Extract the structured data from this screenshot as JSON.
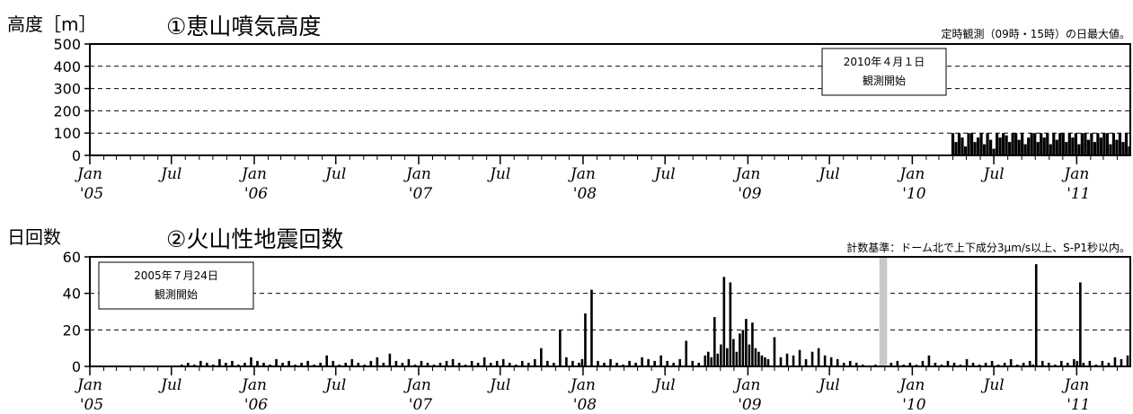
{
  "chart_data": [
    {
      "type": "bar",
      "title": "①恵山噴気高度",
      "ylabel": "高度［m］",
      "note": "定時観測（09時・15時）の日最大値。",
      "ylim": [
        0,
        500
      ],
      "yticks": [
        0,
        100,
        200,
        300,
        400,
        500
      ],
      "grid": "dashed",
      "x_range": [
        "2005-01-01",
        "2011-04-30"
      ],
      "xticks": [
        {
          "date": "2005-01-01",
          "label": "Jan",
          "year": "'05"
        },
        {
          "date": "2005-07-01",
          "label": "Jul",
          "year": ""
        },
        {
          "date": "2006-01-01",
          "label": "Jan",
          "year": "'06"
        },
        {
          "date": "2006-07-01",
          "label": "Jul",
          "year": ""
        },
        {
          "date": "2007-01-01",
          "label": "Jan",
          "year": "'07"
        },
        {
          "date": "2007-07-01",
          "label": "Jul",
          "year": ""
        },
        {
          "date": "2008-01-01",
          "label": "Jan",
          "year": "'08"
        },
        {
          "date": "2008-07-01",
          "label": "Jul",
          "year": ""
        },
        {
          "date": "2009-01-01",
          "label": "Jan",
          "year": "'09"
        },
        {
          "date": "2009-07-01",
          "label": "Jul",
          "year": ""
        },
        {
          "date": "2010-01-01",
          "label": "Jan",
          "year": "'10"
        },
        {
          "date": "2010-07-01",
          "label": "Jul",
          "year": ""
        },
        {
          "date": "2011-01-01",
          "label": "Jan",
          "year": "'11"
        }
      ],
      "annotation": {
        "lines": [
          "2010年４月１日",
          "観測開始"
        ],
        "placement": "top-right"
      },
      "x": [
        "2010-04-01",
        "2010-04-08",
        "2010-04-15",
        "2010-04-22",
        "2010-04-29",
        "2010-05-06",
        "2010-05-13",
        "2010-05-20",
        "2010-05-27",
        "2010-06-03",
        "2010-06-10",
        "2010-06-17",
        "2010-06-24",
        "2010-07-01",
        "2010-07-08",
        "2010-07-15",
        "2010-07-22",
        "2010-07-29",
        "2010-08-05",
        "2010-08-12",
        "2010-08-19",
        "2010-08-26",
        "2010-09-02",
        "2010-09-09",
        "2010-09-16",
        "2010-09-23",
        "2010-09-30",
        "2010-10-07",
        "2010-10-14",
        "2010-10-21",
        "2010-10-28",
        "2010-11-04",
        "2010-11-11",
        "2010-11-18",
        "2010-11-25",
        "2010-12-02",
        "2010-12-09",
        "2010-12-16",
        "2010-12-23",
        "2010-12-30",
        "2011-01-06",
        "2011-01-13",
        "2011-01-20",
        "2011-01-27",
        "2011-02-03",
        "2011-02-10",
        "2011-02-17",
        "2011-02-24",
        "2011-03-03",
        "2011-03-10",
        "2011-03-17",
        "2011-03-24",
        "2011-03-31",
        "2011-04-07",
        "2011-04-14",
        "2011-04-21",
        "2011-04-28"
      ],
      "values": [
        100,
        60,
        100,
        80,
        40,
        100,
        100,
        60,
        80,
        100,
        50,
        100,
        70,
        30,
        100,
        80,
        100,
        90,
        60,
        100,
        100,
        70,
        100,
        50,
        80,
        100,
        100,
        60,
        100,
        80,
        100,
        50,
        100,
        70,
        100,
        100,
        60,
        100,
        80,
        100,
        50,
        100,
        100,
        70,
        100,
        60,
        100,
        80,
        100,
        100,
        50,
        100,
        70,
        100,
        60,
        100,
        40
      ]
    },
    {
      "type": "bar",
      "title": "②火山性地震回数",
      "ylabel": "日回数",
      "note": "計数基準：ドーム北で上下成分3μm/s以上、S-P1秒以内。",
      "ylim": [
        0,
        60
      ],
      "yticks": [
        0,
        20,
        40,
        60
      ],
      "grid": "dashed",
      "x_range": [
        "2005-01-01",
        "2011-04-30"
      ],
      "xticks": [
        {
          "date": "2005-01-01",
          "label": "Jan",
          "year": "'05"
        },
        {
          "date": "2005-07-01",
          "label": "Jul",
          "year": ""
        },
        {
          "date": "2006-01-01",
          "label": "Jan",
          "year": "'06"
        },
        {
          "date": "2006-07-01",
          "label": "Jul",
          "year": ""
        },
        {
          "date": "2007-01-01",
          "label": "Jan",
          "year": "'07"
        },
        {
          "date": "2007-07-01",
          "label": "Jul",
          "year": ""
        },
        {
          "date": "2008-01-01",
          "label": "Jan",
          "year": "'08"
        },
        {
          "date": "2008-07-01",
          "label": "Jul",
          "year": ""
        },
        {
          "date": "2009-01-01",
          "label": "Jan",
          "year": "'09"
        },
        {
          "date": "2009-07-01",
          "label": "Jul",
          "year": ""
        },
        {
          "date": "2010-01-01",
          "label": "Jan",
          "year": "'10"
        },
        {
          "date": "2010-07-01",
          "label": "Jul",
          "year": ""
        },
        {
          "date": "2011-01-01",
          "label": "Jan",
          "year": "'11"
        }
      ],
      "annotation": {
        "lines": [
          "2005年７月24日",
          "観測開始"
        ],
        "placement": "top-left"
      },
      "missing_period": {
        "start": "2009-10-20",
        "end": "2009-11-06",
        "color": "#c8c8c8"
      },
      "x": [
        "2005-07-24",
        "2005-08-07",
        "2005-08-21",
        "2005-09-04",
        "2005-09-18",
        "2005-10-02",
        "2005-10-16",
        "2005-10-30",
        "2005-11-13",
        "2005-11-27",
        "2005-12-11",
        "2005-12-25",
        "2006-01-08",
        "2006-01-22",
        "2006-02-05",
        "2006-02-19",
        "2006-03-05",
        "2006-03-19",
        "2006-04-02",
        "2006-04-16",
        "2006-04-30",
        "2006-05-14",
        "2006-05-28",
        "2006-06-11",
        "2006-06-25",
        "2006-07-09",
        "2006-07-23",
        "2006-08-06",
        "2006-08-20",
        "2006-09-03",
        "2006-09-17",
        "2006-10-01",
        "2006-10-15",
        "2006-10-29",
        "2006-11-12",
        "2006-11-26",
        "2006-12-10",
        "2006-12-24",
        "2007-01-07",
        "2007-01-21",
        "2007-02-04",
        "2007-02-18",
        "2007-03-04",
        "2007-03-18",
        "2007-04-01",
        "2007-04-15",
        "2007-04-29",
        "2007-05-13",
        "2007-05-27",
        "2007-06-10",
        "2007-06-24",
        "2007-07-08",
        "2007-07-22",
        "2007-08-05",
        "2007-08-19",
        "2007-09-02",
        "2007-09-16",
        "2007-09-30",
        "2007-10-14",
        "2007-10-28",
        "2007-11-11",
        "2007-11-25",
        "2007-12-09",
        "2007-12-23",
        "2007-12-30",
        "2008-01-06",
        "2008-01-20",
        "2008-02-03",
        "2008-02-17",
        "2008-03-02",
        "2008-03-16",
        "2008-03-30",
        "2008-04-13",
        "2008-04-27",
        "2008-05-11",
        "2008-05-25",
        "2008-06-08",
        "2008-06-22",
        "2008-07-06",
        "2008-07-20",
        "2008-08-03",
        "2008-08-17",
        "2008-08-31",
        "2008-09-14",
        "2008-09-28",
        "2008-10-05",
        "2008-10-12",
        "2008-10-19",
        "2008-10-26",
        "2008-11-02",
        "2008-11-09",
        "2008-11-16",
        "2008-11-23",
        "2008-11-30",
        "2008-12-07",
        "2008-12-14",
        "2008-12-21",
        "2008-12-28",
        "2009-01-04",
        "2009-01-11",
        "2009-01-18",
        "2009-01-25",
        "2009-02-01",
        "2009-02-08",
        "2009-02-15",
        "2009-03-01",
        "2009-03-15",
        "2009-03-29",
        "2009-04-12",
        "2009-04-26",
        "2009-05-10",
        "2009-05-24",
        "2009-06-07",
        "2009-06-21",
        "2009-07-05",
        "2009-07-19",
        "2009-08-02",
        "2009-08-16",
        "2009-08-30",
        "2009-09-13",
        "2009-09-27",
        "2009-10-11",
        "2009-11-15",
        "2009-11-29",
        "2009-12-13",
        "2009-12-27",
        "2010-01-10",
        "2010-01-24",
        "2010-02-07",
        "2010-02-21",
        "2010-03-07",
        "2010-03-21",
        "2010-04-04",
        "2010-04-18",
        "2010-05-02",
        "2010-05-16",
        "2010-05-30",
        "2010-06-13",
        "2010-06-27",
        "2010-07-11",
        "2010-07-25",
        "2010-08-08",
        "2010-08-22",
        "2010-09-05",
        "2010-09-19",
        "2010-09-26",
        "2010-10-03",
        "2010-10-17",
        "2010-10-31",
        "2010-11-14",
        "2010-11-28",
        "2010-12-12",
        "2010-12-26",
        "2011-01-02",
        "2011-01-09",
        "2011-01-16",
        "2011-01-30",
        "2011-02-13",
        "2011-02-27",
        "2011-03-13",
        "2011-03-27",
        "2011-04-10",
        "2011-04-24"
      ],
      "values": [
        1,
        2,
        1,
        3,
        2,
        1,
        4,
        2,
        3,
        1,
        2,
        5,
        3,
        2,
        1,
        4,
        2,
        3,
        1,
        2,
        3,
        1,
        2,
        6,
        3,
        1,
        2,
        4,
        2,
        1,
        3,
        5,
        2,
        7,
        3,
        2,
        4,
        1,
        3,
        2,
        1,
        2,
        3,
        4,
        2,
        1,
        3,
        2,
        5,
        2,
        3,
        4,
        2,
        1,
        3,
        2,
        4,
        10,
        3,
        2,
        20,
        5,
        3,
        2,
        4,
        29,
        42,
        3,
        2,
        4,
        2,
        1,
        3,
        2,
        5,
        4,
        3,
        6,
        3,
        2,
        4,
        14,
        3,
        2,
        6,
        8,
        5,
        27,
        7,
        12,
        49,
        10,
        46,
        15,
        8,
        18,
        20,
        26,
        12,
        24,
        10,
        8,
        6,
        5,
        4,
        16,
        5,
        7,
        6,
        9,
        4,
        8,
        10,
        6,
        5,
        4,
        2,
        3,
        2,
        1,
        0,
        1,
        2,
        3,
        1,
        2,
        1,
        3,
        6,
        2,
        1,
        3,
        2,
        1,
        4,
        2,
        1,
        2,
        3,
        1,
        2,
        4,
        1,
        2,
        3,
        1,
        56,
        3,
        2,
        1,
        3,
        2,
        4,
        3,
        46,
        2,
        3,
        1,
        3,
        2,
        5,
        4,
        6
      ]
    }
  ]
}
